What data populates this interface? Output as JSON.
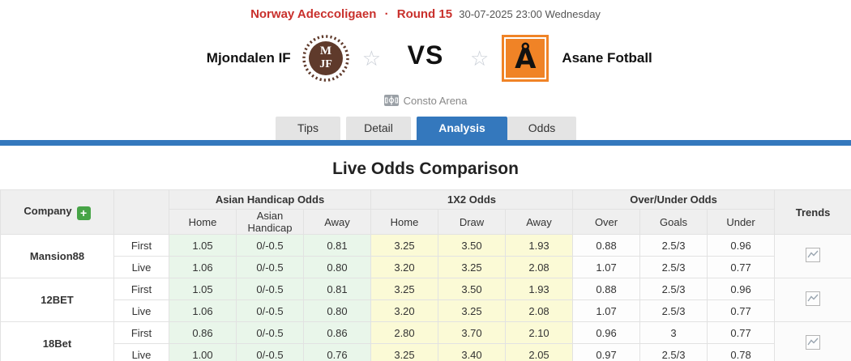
{
  "league_header": {
    "league": "Norway Adeccoligaen",
    "separator": "·",
    "round": "Round 15",
    "datetime": "30-07-2025 23:00 Wednesday"
  },
  "match": {
    "home_team": "Mjondalen IF",
    "away_team": "Asane Fotball",
    "vs_label": "VS",
    "venue": "Consto Arena",
    "home_logo_monogram_top": "M",
    "home_logo_monogram_bottom": "JF",
    "away_logo_letter": "Å"
  },
  "tabs": [
    {
      "label": "Tips",
      "active": false
    },
    {
      "label": "Detail",
      "active": false
    },
    {
      "label": "Analysis",
      "active": true
    },
    {
      "label": "Odds",
      "active": false
    }
  ],
  "section_title": "Live Odds Comparison",
  "odds_table": {
    "company_header": "Company",
    "add_button_label": "+",
    "group_headers": [
      "Asian Handicap Odds",
      "1X2 Odds",
      "Over/Under Odds"
    ],
    "sub_headers": {
      "ah": [
        "Home",
        "Asian Handicap",
        "Away"
      ],
      "x12": [
        "Home",
        "Draw",
        "Away"
      ],
      "ou": [
        "Over",
        "Goals",
        "Under"
      ]
    },
    "trends_header": "Trends",
    "companies": [
      {
        "name": "Mansion88",
        "rows": [
          {
            "label": "First",
            "ah": [
              "1.05",
              "0/-0.5",
              "0.81"
            ],
            "x12": [
              "3.25",
              "3.50",
              "1.93"
            ],
            "ou": [
              "0.88",
              "2.5/3",
              "0.96"
            ]
          },
          {
            "label": "Live",
            "ah": [
              "1.06",
              "0/-0.5",
              "0.80"
            ],
            "x12": [
              "3.20",
              "3.25",
              "2.08"
            ],
            "ou": [
              "1.07",
              "2.5/3",
              "0.77"
            ]
          }
        ]
      },
      {
        "name": "12BET",
        "rows": [
          {
            "label": "First",
            "ah": [
              "1.05",
              "0/-0.5",
              "0.81"
            ],
            "x12": [
              "3.25",
              "3.50",
              "1.93"
            ],
            "ou": [
              "0.88",
              "2.5/3",
              "0.96"
            ]
          },
          {
            "label": "Live",
            "ah": [
              "1.06",
              "0/-0.5",
              "0.80"
            ],
            "x12": [
              "3.20",
              "3.25",
              "2.08"
            ],
            "ou": [
              "1.07",
              "2.5/3",
              "0.77"
            ]
          }
        ]
      },
      {
        "name": "18Bet",
        "rows": [
          {
            "label": "First",
            "ah": [
              "0.86",
              "0/-0.5",
              "0.86"
            ],
            "x12": [
              "2.80",
              "3.70",
              "2.10"
            ],
            "ou": [
              "0.96",
              "3",
              "0.77"
            ]
          },
          {
            "label": "Live",
            "ah": [
              "1.00",
              "0/-0.5",
              "0.76"
            ],
            "x12": [
              "3.25",
              "3.40",
              "2.05"
            ],
            "ou": [
              "0.97",
              "2.5/3",
              "0.78"
            ]
          }
        ]
      }
    ]
  },
  "colors": {
    "accent_red": "#c9302c",
    "accent_blue": "#3478bd",
    "ah_cell_bg": "#e9f6ea",
    "x12_cell_bg": "#fbfad6",
    "home_logo_brown": "#5f3a2b",
    "away_logo_orange": "#f08326",
    "add_button_green": "#47a447"
  }
}
